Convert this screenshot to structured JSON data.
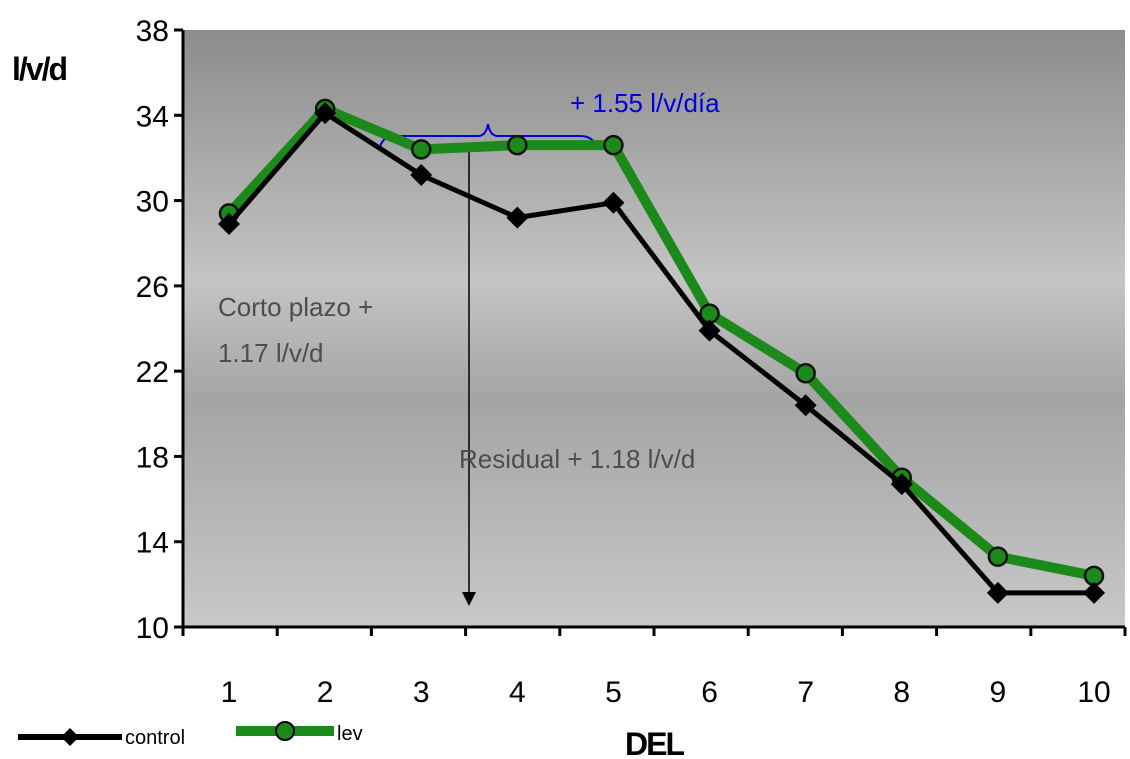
{
  "chart_data": {
    "type": "line",
    "title": "",
    "xlabel": "DEL",
    "ylabel": "l/v/d",
    "x": [
      1,
      2,
      3,
      4,
      5,
      6,
      7,
      8,
      9,
      10
    ],
    "ylim": [
      10,
      38
    ],
    "yticks": [
      10,
      14,
      18,
      22,
      26,
      30,
      34,
      38
    ],
    "grid": false,
    "legend_position": "bottom-left",
    "series": [
      {
        "name": "control",
        "color": "#000000",
        "marker": "diamond",
        "values": [
          28.9,
          34.1,
          31.2,
          29.2,
          29.9,
          23.9,
          20.4,
          16.7,
          11.6,
          11.6
        ]
      },
      {
        "name": "lev",
        "color": "#1b8a1b",
        "marker": "circle",
        "values": [
          29.4,
          34.3,
          32.4,
          32.6,
          32.6,
          24.7,
          21.9,
          17.0,
          13.3,
          12.4
        ]
      }
    ],
    "annotations": {
      "bracket_label": "+ 1.55 l/v/día",
      "short_term_line1": "Corto plazo +",
      "short_term_line2": "1.17 l/v/d",
      "residual": "Residual + 1.18 l/v/d"
    },
    "colors": {
      "bracket": "#0000dd",
      "annotation_text": "#4d4d4d"
    }
  }
}
